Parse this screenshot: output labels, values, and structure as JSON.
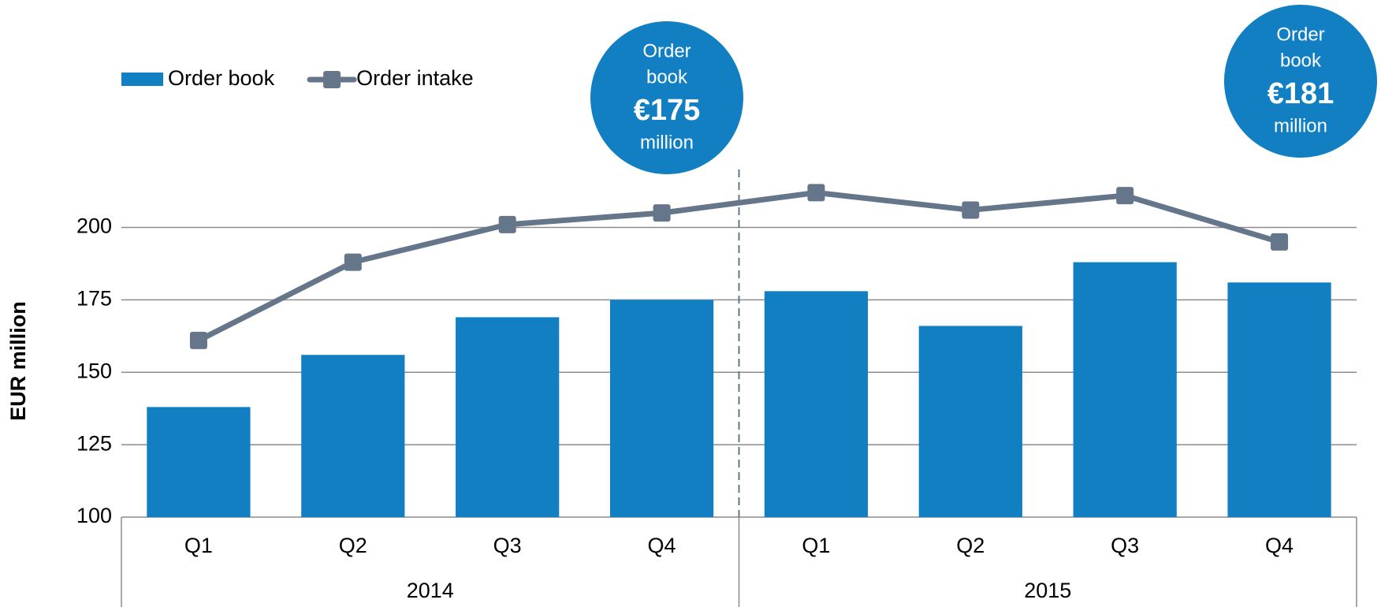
{
  "chart_data": {
    "type": "bar_line",
    "y_label": "EUR million",
    "categories": [
      "Q1",
      "Q2",
      "Q3",
      "Q4",
      "Q1",
      "Q2",
      "Q3",
      "Q4"
    ],
    "groups": [
      "2014",
      "2015"
    ],
    "series": [
      {
        "name": "Order book",
        "type": "bar",
        "color": "#127fc3",
        "values": [
          138,
          156,
          169,
          175,
          178,
          166,
          188,
          181
        ]
      },
      {
        "name": "Order intake",
        "type": "line",
        "color": "#65768a",
        "values": [
          161,
          188,
          201,
          205,
          212,
          206,
          211,
          195
        ]
      }
    ],
    "ylim": [
      100,
      220
    ],
    "yticks": [
      100,
      125,
      150,
      175,
      200
    ],
    "grid": true,
    "legend": "top-left",
    "annotations": [
      {
        "lines": [
          "Order",
          "book",
          "€175",
          "million"
        ],
        "color": "#127fc3"
      },
      {
        "lines": [
          "Order",
          "book",
          "€181",
          "million"
        ],
        "color": "#127fc3"
      }
    ]
  }
}
